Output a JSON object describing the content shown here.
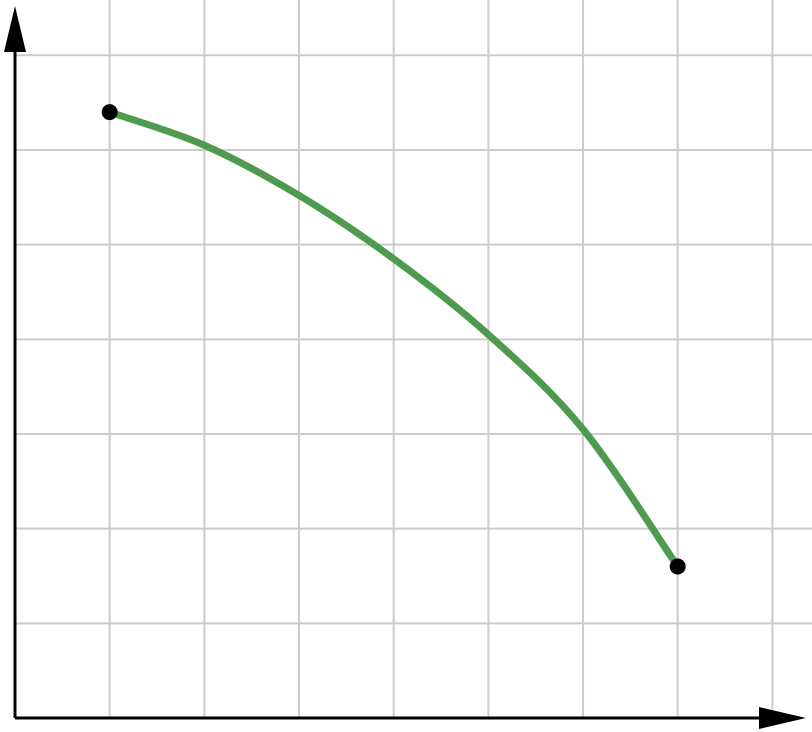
{
  "chart_data": {
    "type": "line",
    "title": "",
    "xlabel": "",
    "ylabel": "",
    "xlim": [
      0,
      8.4
    ],
    "ylim": [
      0,
      7
    ],
    "grid": true,
    "legend": "none",
    "series": [
      {
        "color": "#4e9a4e",
        "x": [
          1,
          2,
          3,
          4,
          5,
          6,
          7
        ],
        "y": [
          6.4,
          6.05,
          5.52,
          4.85,
          4.05,
          3.05,
          1.6
        ]
      }
    ],
    "endpoints": [
      {
        "x": 1,
        "y": 6.4
      },
      {
        "x": 7,
        "y": 1.6
      }
    ],
    "colors": {
      "curve": "#4e9a4e",
      "point": "#000000",
      "grid": "#cccccc",
      "axis": "#000000"
    }
  }
}
